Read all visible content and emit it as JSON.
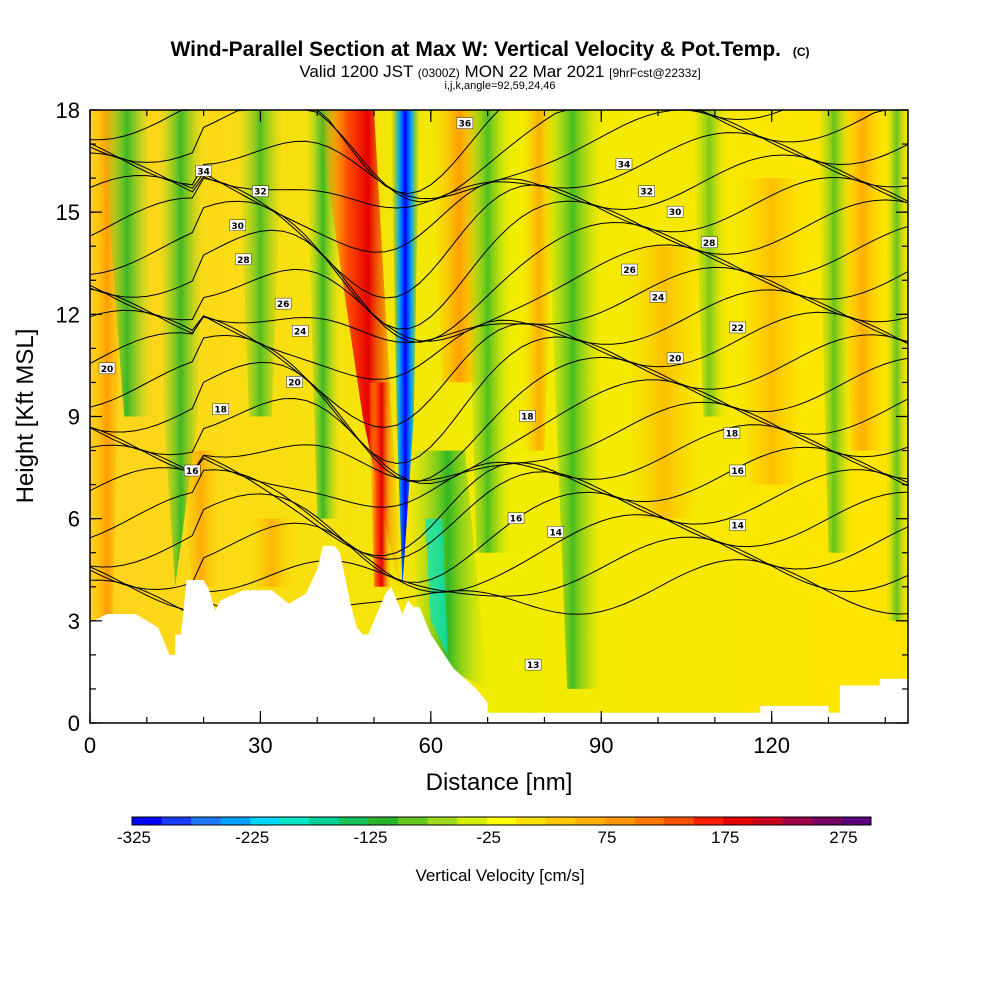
{
  "header": {
    "title": "Wind-Parallel Section at Max W: Vertical Velocity & Pot.Temp.",
    "copyright": "(C)",
    "valid_prefix": "Valid 1200 JST",
    "valid_zulu": "(0300Z)",
    "valid_date": "MON 22 Mar 2021",
    "forecast_info": "[9hrFcst@2233z]",
    "ijk": "i,j,k,angle=92,59,24,46"
  },
  "chart_data": {
    "type": "heatmap",
    "title": "Wind-Parallel Section at Max W: Vertical Velocity & Pot.Temp.",
    "xlabel": "Distance [nm]",
    "ylabel": "Height [Kft MSL]",
    "xlim": [
      0,
      144
    ],
    "ylim": [
      0,
      18
    ],
    "x_ticks": [
      0,
      30,
      60,
      90,
      120
    ],
    "y_ticks": [
      0,
      3,
      6,
      9,
      12,
      15,
      18
    ],
    "colorbar": {
      "label": "Vertical Velocity [cm/s]",
      "tick_values": [
        "-325",
        "-225",
        "-125",
        "-25",
        "75",
        "175",
        "275"
      ],
      "colors": [
        "#0000ff",
        "#1a3cff",
        "#1e78ff",
        "#00a0ff",
        "#00d8ff",
        "#00e6c8",
        "#00d296",
        "#14c35a",
        "#28b428",
        "#64c81e",
        "#a0dc1e",
        "#d2f000",
        "#ffff00",
        "#ffe100",
        "#ffc800",
        "#ffaf00",
        "#ff9600",
        "#ff7800",
        "#ff5000",
        "#ff1e00",
        "#e60000",
        "#c8001e",
        "#a00046",
        "#780064",
        "#5a0078"
      ]
    },
    "theta_contour_labels": [
      "34",
      "32",
      "30",
      "28",
      "26",
      "24",
      "22",
      "20",
      "18",
      "16",
      "14",
      "13",
      "36"
    ]
  }
}
